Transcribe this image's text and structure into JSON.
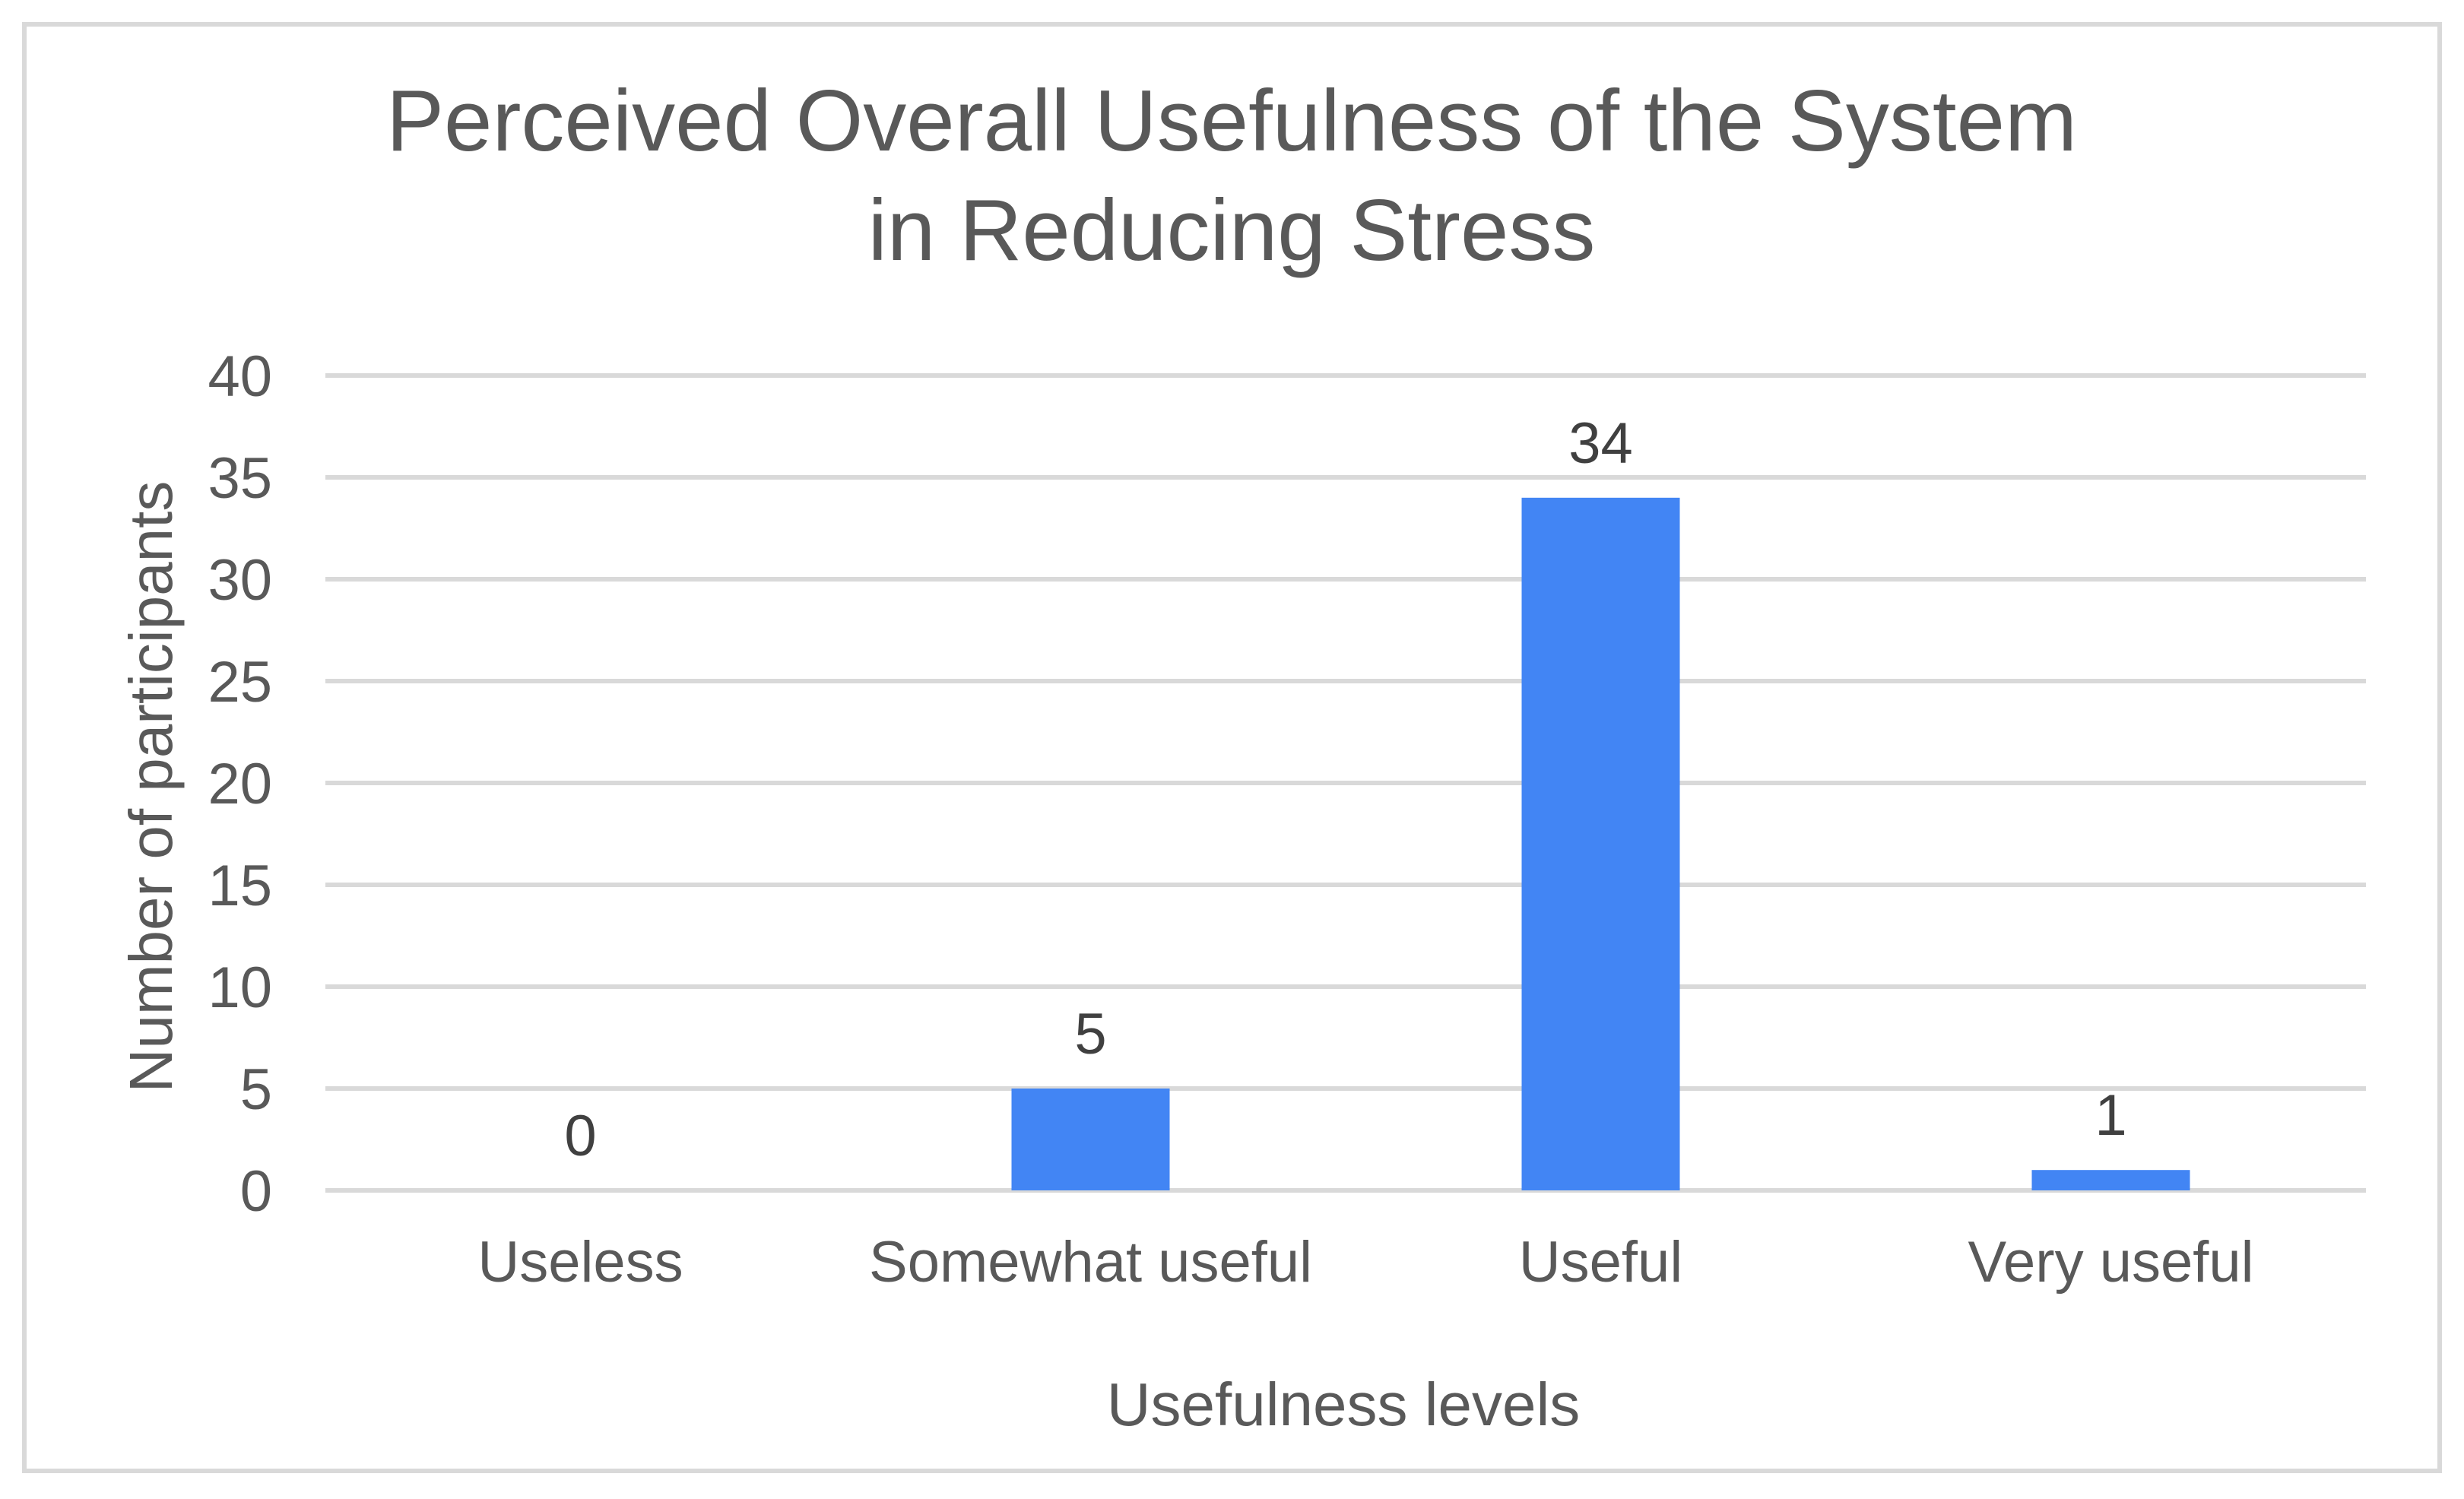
{
  "chart_data": {
    "type": "bar",
    "title": [
      "Perceived Overall Usefulness of the System",
      "in Reducing Stress"
    ],
    "xlabel": "Usefulness levels",
    "ylabel": "Number of participants",
    "categories": [
      "Useless",
      "Somewhat useful",
      "Useful",
      "Very useful"
    ],
    "values": [
      0,
      5,
      34,
      1
    ],
    "data_labels": [
      "0",
      "5",
      "34",
      "1"
    ],
    "ylim": [
      0,
      40
    ],
    "yticks": [
      0,
      5,
      10,
      15,
      20,
      25,
      30,
      35,
      40
    ],
    "grid": true,
    "legend": "none",
    "colors": {
      "bar": "#4285f4",
      "gridline": "#d9d9d9",
      "text": "#595959",
      "frame": "#d9d9d9"
    }
  }
}
